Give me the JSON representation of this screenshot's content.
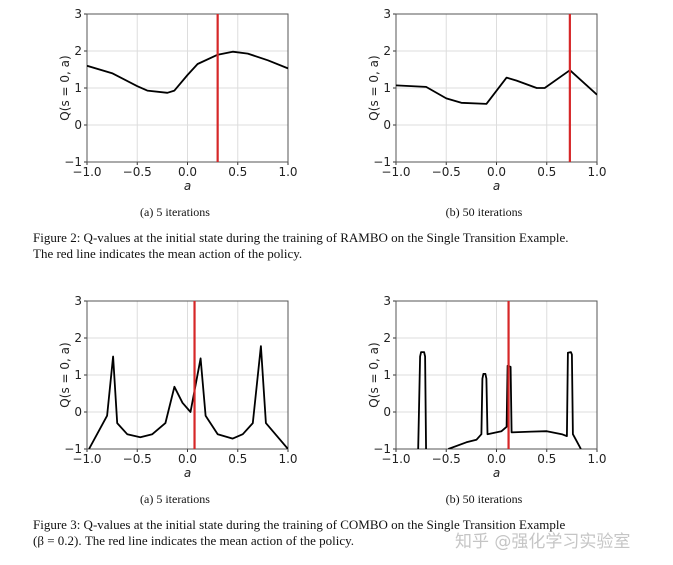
{
  "chart_data": [
    {
      "type": "line",
      "panel": "(a) 5 iterations",
      "figure": "Figure 2",
      "xlabel": "a",
      "ylabel": "Q(s = 0, a)",
      "xlim": [
        -1,
        1
      ],
      "ylim": [
        -1,
        3
      ],
      "xticks": [
        "−1.0",
        "−0.5",
        "0.0",
        "0.5",
        "1.0"
      ],
      "yticks": [
        "−1",
        "0",
        "1",
        "2",
        "3"
      ],
      "grid": true,
      "mean_action": 0.3,
      "x": [
        -1,
        -0.75,
        -0.5,
        -0.4,
        -0.2,
        -0.13,
        0,
        0.1,
        0.3,
        0.45,
        0.6,
        0.8,
        1
      ],
      "y": [
        1.6,
        1.4,
        1.05,
        0.93,
        0.87,
        0.93,
        1.35,
        1.65,
        1.9,
        1.98,
        1.93,
        1.75,
        1.53
      ]
    },
    {
      "type": "line",
      "panel": "(b) 50 iterations",
      "figure": "Figure 2",
      "xlabel": "a",
      "ylabel": "Q(s = 0, a)",
      "xlim": [
        -1,
        1
      ],
      "ylim": [
        -1,
        3
      ],
      "xticks": [
        "−1.0",
        "−0.5",
        "0.0",
        "0.5",
        "1.0"
      ],
      "yticks": [
        "−1",
        "0",
        "1",
        "2",
        "3"
      ],
      "grid": true,
      "mean_action": 0.73,
      "x": [
        -1,
        -0.7,
        -0.5,
        -0.35,
        -0.1,
        0.1,
        0.2,
        0.4,
        0.48,
        0.73,
        1
      ],
      "y": [
        1.07,
        1.03,
        0.72,
        0.6,
        0.57,
        1.28,
        1.2,
        1.0,
        1.0,
        1.48,
        0.82
      ]
    },
    {
      "type": "line",
      "panel": "(a) 5 iterations",
      "figure": "Figure 3",
      "xlabel": "a",
      "ylabel": "Q(s = 0, a)",
      "xlim": [
        -1,
        1
      ],
      "ylim": [
        -1,
        3
      ],
      "xticks": [
        "−1.0",
        "−0.5",
        "0.0",
        "0.5",
        "1.0"
      ],
      "yticks": [
        "−1",
        "0",
        "1",
        "2",
        "3"
      ],
      "grid": true,
      "mean_action": 0.07,
      "x": [
        -0.98,
        -0.8,
        -0.74,
        -0.7,
        -0.6,
        -0.47,
        -0.35,
        -0.22,
        -0.13,
        -0.05,
        0.03,
        0.13,
        0.18,
        0.3,
        0.45,
        0.55,
        0.65,
        0.73,
        0.78,
        1
      ],
      "y": [
        -1,
        -0.1,
        1.5,
        -0.3,
        -0.6,
        -0.68,
        -0.6,
        -0.3,
        0.68,
        0.25,
        0,
        1.45,
        -0.1,
        -0.6,
        -0.72,
        -0.6,
        -0.3,
        1.78,
        -0.3,
        -1
      ]
    },
    {
      "type": "line",
      "panel": "(b) 50 iterations",
      "figure": "Figure 3",
      "xlabel": "a",
      "ylabel": "Q(s = 0, a)",
      "xlim": [
        -1,
        1
      ],
      "ylim": [
        -1,
        3
      ],
      "xticks": [
        "−1.0",
        "−0.5",
        "0.0",
        "0.5",
        "1.0"
      ],
      "yticks": [
        "−1",
        "0",
        "1",
        "2",
        "3"
      ],
      "grid": true,
      "mean_action": 0.12,
      "segments": [
        {
          "x": [
            -0.78,
            -0.76,
            -0.75,
            -0.72,
            -0.71,
            -0.7
          ],
          "y": [
            -1.1,
            1.5,
            1.62,
            1.62,
            1.5,
            -1.1
          ]
        },
        {
          "x": [
            -0.48,
            -0.3,
            -0.2,
            -0.15,
            -0.14,
            -0.13,
            -0.11,
            -0.1,
            -0.09,
            0.05,
            0.1,
            0.11,
            0.14,
            0.15,
            0.35,
            0.5,
            0.65,
            0.7,
            0.71,
            0.74,
            0.75,
            0.76,
            0.8,
            0.84
          ],
          "y": [
            -1,
            -0.82,
            -0.75,
            -0.6,
            0.9,
            1.03,
            1.03,
            0.9,
            -0.6,
            -0.52,
            -0.4,
            1.25,
            1.22,
            -0.55,
            -0.53,
            -0.52,
            -0.6,
            -0.65,
            1.6,
            1.62,
            1.55,
            -0.6,
            -0.8,
            -1
          ]
        }
      ]
    }
  ],
  "colors": {
    "line": "#000000",
    "mean_action": "#d62728",
    "grid": "#dddddd"
  },
  "subcaptions": [
    "(a) 5 iterations",
    "(b) 50 iterations",
    "(a) 5 iterations",
    "(b) 50 iterations"
  ],
  "captions": {
    "fig2_line1": "Figure 2: Q-values at the initial state during the training of RAMBO on the Single Transition Example.",
    "fig2_line2": "The red line indicates the mean action of the policy.",
    "fig3_line1": "Figure 3: Q-values at the initial state during the training of COMBO on the Single Transition Example",
    "fig3_line2": "(β = 0.2). The red line indicates the mean action of the policy."
  },
  "watermark": "知乎 @强化学习实验室"
}
